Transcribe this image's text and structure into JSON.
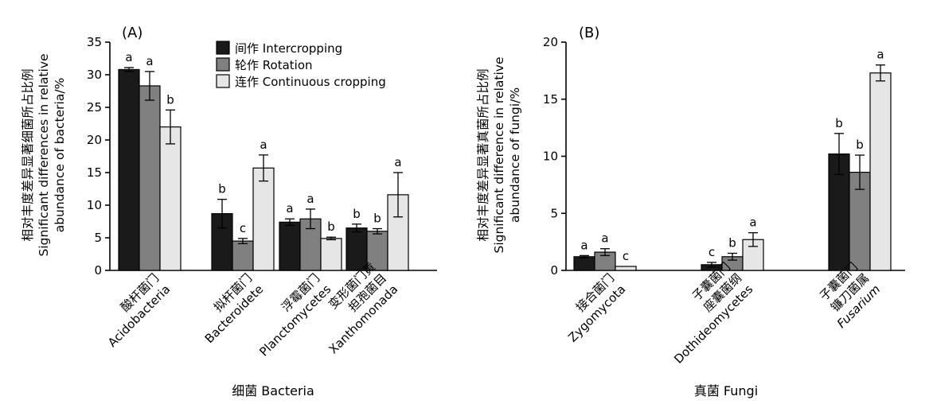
{
  "legend": [
    {
      "label": "间作 Intercropping",
      "color": "#1a1a1a"
    },
    {
      "label": "轮作 Rotation",
      "color": "#808080"
    },
    {
      "label": "连作 Continuous cropping",
      "color": "#e6e6e6"
    }
  ],
  "chart_data": [
    {
      "type": "bar",
      "panel_label": "(A)",
      "ylabel_lines": [
        "相对丰度差异显著细菌所占比例",
        "Significant differences in relative",
        "abundance of bacteria/%"
      ],
      "xlabel": "细菌 Bacteria",
      "ylim": [
        0,
        35
      ],
      "yticks": [
        0,
        5,
        10,
        15,
        20,
        25,
        30,
        35
      ],
      "categories": [
        {
          "lines": [
            "酸杆菌门",
            "Acidobacteria"
          ],
          "italic": [
            false,
            false
          ]
        },
        {
          "lines": [
            "拟杆菌门",
            "Bacteroidete"
          ],
          "italic": [
            false,
            false
          ]
        },
        {
          "lines": [
            "浮霉菌门",
            "Planctomycetes"
          ],
          "italic": [
            false,
            false
          ]
        },
        {
          "lines": [
            "变形菌门黄",
            "担孢菌目",
            "Xanthomonada"
          ],
          "italic": [
            false,
            false,
            false
          ]
        }
      ],
      "series": [
        {
          "name": "间作 Intercropping",
          "values": [
            30.8,
            8.7,
            7.4,
            6.5
          ],
          "errors": [
            0.3,
            2.2,
            0.5,
            0.6
          ],
          "letters": [
            "a",
            "b",
            "a",
            "b"
          ]
        },
        {
          "name": "轮作 Rotation",
          "values": [
            28.3,
            4.5,
            7.9,
            6.0
          ],
          "errors": [
            2.2,
            0.4,
            1.5,
            0.4
          ],
          "letters": [
            "a",
            "c",
            "a",
            "b"
          ]
        },
        {
          "name": "连作 Continuous cropping",
          "values": [
            22.0,
            15.7,
            4.9,
            11.6
          ],
          "errors": [
            2.6,
            2.0,
            0.2,
            3.4
          ],
          "letters": [
            "b",
            "a",
            "b",
            "a"
          ]
        }
      ]
    },
    {
      "type": "bar",
      "panel_label": "(B)",
      "ylabel_lines": [
        "相对丰度差异显著真菌所占比例",
        "Significant difference in relative",
        "abundance of fungi/%"
      ],
      "xlabel": "真菌 Fungi",
      "ylim": [
        0,
        20
      ],
      "yticks": [
        0,
        5,
        10,
        15,
        20
      ],
      "categories": [
        {
          "lines": [
            "接合菌门",
            "Zygomycota"
          ],
          "italic": [
            false,
            false
          ]
        },
        {
          "lines": [
            "子囊菌门",
            "座囊菌纲",
            "Dothideomycetes"
          ],
          "italic": [
            false,
            false,
            false
          ]
        },
        {
          "lines": [
            "子囊菌门",
            "镰刀菌属",
            "Fusarium"
          ],
          "italic": [
            false,
            false,
            true
          ]
        }
      ],
      "series": [
        {
          "name": "间作 Intercropping",
          "values": [
            1.2,
            0.5,
            10.2
          ],
          "errors": [
            0.1,
            0.2,
            1.8
          ],
          "letters": [
            "a",
            "c",
            "b"
          ]
        },
        {
          "name": "轮作 Rotation",
          "values": [
            1.6,
            1.2,
            8.6
          ],
          "errors": [
            0.3,
            0.3,
            1.5
          ],
          "letters": [
            "a",
            "b",
            "b"
          ]
        },
        {
          "name": "连作 Continuous cropping",
          "values": [
            0.35,
            2.7,
            17.3
          ],
          "errors": [
            0.0,
            0.6,
            0.7
          ],
          "letters": [
            "c",
            "a",
            "a"
          ]
        }
      ]
    }
  ]
}
